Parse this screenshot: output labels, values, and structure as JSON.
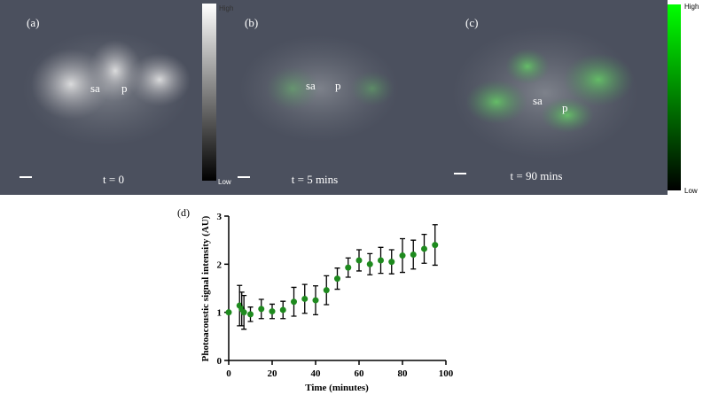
{
  "panels": [
    {
      "label": "(a)",
      "sa": "sa",
      "p": "p",
      "time": "t = 0"
    },
    {
      "label": "(b)",
      "sa": "sa",
      "p": "p",
      "time": "t = 5 mins"
    },
    {
      "label": "(c)",
      "sa": "sa",
      "p": "p",
      "time": "t = 90 mins"
    }
  ],
  "colorbars": {
    "gray": {
      "high": "High",
      "low": "Low"
    },
    "green": {
      "high": "High",
      "low": "Low"
    }
  },
  "chart_data": {
    "type": "scatter",
    "panel_label": "(d)",
    "x_label": "Time (minutes)",
    "y_label": "Photoacoustic signal intensity (AU)",
    "color": "#1e8a1e",
    "x": [
      0,
      5,
      6,
      7,
      10,
      15,
      20,
      25,
      30,
      35,
      40,
      45,
      50,
      55,
      60,
      65,
      70,
      75,
      80,
      85,
      90,
      95
    ],
    "values": [
      1.0,
      1.14,
      1.07,
      1.0,
      0.96,
      1.07,
      1.02,
      1.05,
      1.22,
      1.28,
      1.25,
      1.46,
      1.7,
      1.93,
      2.08,
      2.0,
      2.08,
      2.05,
      2.18,
      2.2,
      2.32,
      2.4
    ],
    "errors": [
      0.0,
      0.42,
      0.35,
      0.35,
      0.15,
      0.2,
      0.15,
      0.18,
      0.3,
      0.3,
      0.3,
      0.3,
      0.22,
      0.2,
      0.22,
      0.22,
      0.27,
      0.25,
      0.35,
      0.3,
      0.3,
      0.42
    ],
    "xlim": [
      0,
      100
    ],
    "xticks": [
      0,
      20,
      40,
      60,
      80,
      100
    ],
    "ylim": [
      0,
      3
    ],
    "yticks": [
      0,
      1,
      2,
      3
    ]
  }
}
